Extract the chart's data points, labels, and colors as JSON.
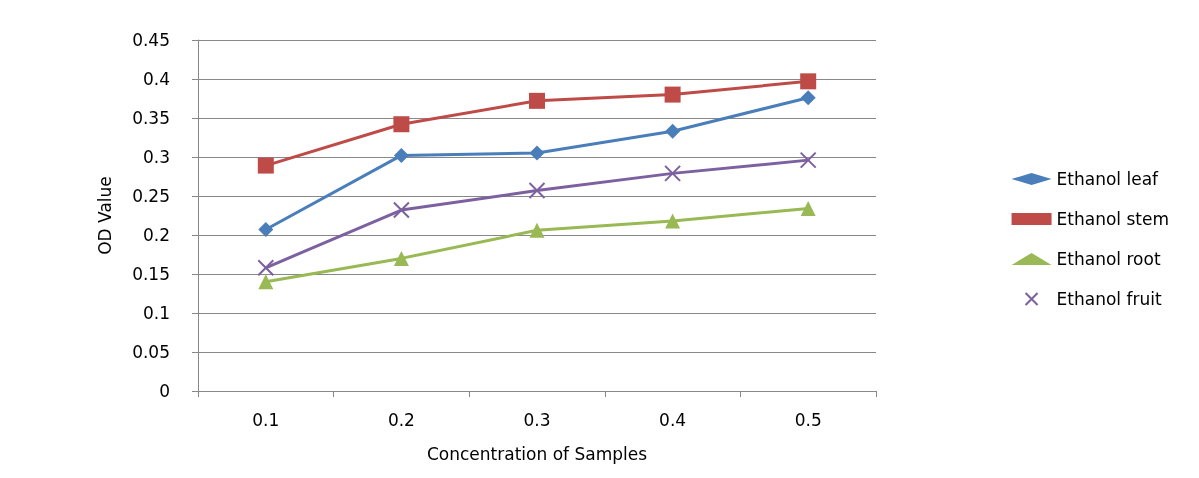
{
  "chart_data": {
    "type": "line",
    "xlabel": "Concentration of Samples",
    "ylabel": "OD Value",
    "categories": [
      "0.1",
      "0.2",
      "0.3",
      "0.4",
      "0.5"
    ],
    "series": [
      {
        "name": "Ethanol leaf",
        "color": "#4a7ebb",
        "marker": "diamond",
        "values": [
          0.207,
          0.302,
          0.305,
          0.333,
          0.376
        ]
      },
      {
        "name": "Ethanol stem",
        "color": "#be4b48",
        "marker": "square",
        "values": [
          0.289,
          0.342,
          0.372,
          0.38,
          0.397
        ]
      },
      {
        "name": "Ethanol root",
        "color": "#98b954",
        "marker": "triangle",
        "values": [
          0.14,
          0.17,
          0.206,
          0.218,
          0.234
        ]
      },
      {
        "name": "Ethanol fruit",
        "color": "#7d60a0",
        "marker": "cross",
        "values": [
          0.158,
          0.232,
          0.257,
          0.279,
          0.296
        ]
      }
    ],
    "ylim": [
      0,
      0.45
    ],
    "yticks": [
      0,
      0.05,
      0.1,
      0.15,
      0.2,
      0.25,
      0.3,
      0.35,
      0.4,
      0.45
    ],
    "grid": "y",
    "legend": "right",
    "line_style": "solid"
  }
}
